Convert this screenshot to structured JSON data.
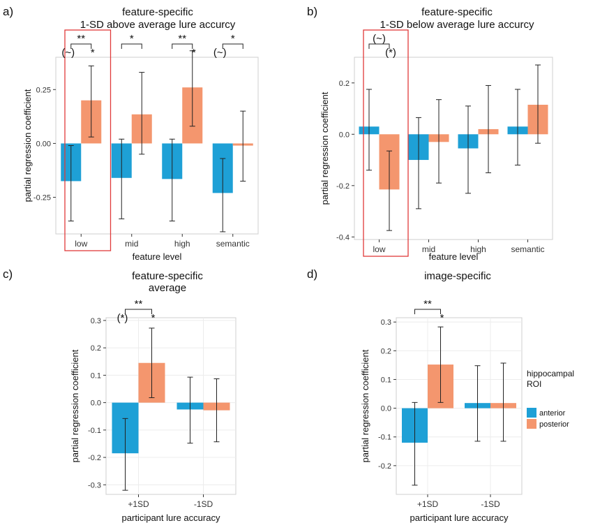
{
  "colors": {
    "anterior": "#1ea0d6",
    "posterior": "#f4966e",
    "highlight": "#e03a3a",
    "panel_border": "#cfcfcf"
  },
  "legend": {
    "title_line1": "hippocampal",
    "title_line2": "ROI",
    "items": [
      {
        "key": "anterior",
        "label": "anterior"
      },
      {
        "key": "posterior",
        "label": "posterior"
      }
    ]
  },
  "chart_data": [
    {
      "id": "a",
      "letter": "a)",
      "type": "bar",
      "title_lines": [
        "feature-specific",
        "1-SD above average lure accurcy"
      ],
      "xlabel": "feature level",
      "ylabel": "partial regression coefficient",
      "categories": [
        "low",
        "mid",
        "high",
        "semantic"
      ],
      "ylim": [
        -0.42,
        0.4
      ],
      "yticks": [
        -0.25,
        0,
        0.25
      ],
      "ytick_labels": [
        "-0.25",
        "0.00",
        "0.25"
      ],
      "highlight_category": 0,
      "grid": false,
      "series": [
        {
          "key": "anterior",
          "values": [
            -0.175,
            -0.16,
            -0.165,
            -0.23
          ],
          "lower": [
            -0.36,
            -0.35,
            -0.36,
            -0.41
          ],
          "upper": [
            -0.01,
            0.02,
            0.02,
            -0.07
          ]
        },
        {
          "key": "posterior",
          "values": [
            0.2,
            0.135,
            0.26,
            -0.01
          ],
          "lower": [
            0.03,
            -0.05,
            0.08,
            -0.175
          ],
          "upper": [
            0.36,
            0.33,
            0.43,
            0.15
          ]
        }
      ],
      "annotations": [
        {
          "category": 0,
          "bracket": "**",
          "anterior": "(~)",
          "posterior": "*"
        },
        {
          "category": 1,
          "bracket": "*",
          "anterior": "",
          "posterior": ""
        },
        {
          "category": 2,
          "bracket": "**",
          "anterior": "",
          "posterior": "*"
        },
        {
          "category": 3,
          "bracket": "*",
          "anterior": "(~)",
          "posterior": ""
        }
      ]
    },
    {
      "id": "b",
      "letter": "b)",
      "type": "bar",
      "title_lines": [
        "feature-specific",
        "1-SD below average lure accurcy"
      ],
      "xlabel": "feature level",
      "ylabel": "partial regression coefficient",
      "categories": [
        "low",
        "mid",
        "high",
        "semantic"
      ],
      "ylim": [
        -0.41,
        0.3
      ],
      "yticks": [
        -0.4,
        -0.2,
        0,
        0.2
      ],
      "ytick_labels": [
        "-0.4",
        "-0.2",
        "0.0",
        "0.2"
      ],
      "highlight_category": 0,
      "grid": false,
      "series": [
        {
          "key": "anterior",
          "values": [
            0.03,
            -0.1,
            -0.055,
            0.03
          ],
          "lower": [
            -0.14,
            -0.29,
            -0.23,
            -0.12
          ],
          "upper": [
            0.175,
            0.065,
            0.11,
            0.175
          ]
        },
        {
          "key": "posterior",
          "values": [
            -0.215,
            -0.03,
            0.02,
            0.115
          ],
          "lower": [
            -0.375,
            -0.19,
            -0.15,
            -0.035
          ],
          "upper": [
            -0.065,
            0.135,
            0.19,
            0.27
          ]
        }
      ],
      "annotations": [
        {
          "category": 0,
          "bracket": "(~)",
          "anterior": "",
          "posterior": "(*)"
        }
      ]
    },
    {
      "id": "c",
      "letter": "c)",
      "type": "bar",
      "title_lines": [
        "feature-specific",
        "average"
      ],
      "xlabel": "participant lure accuracy",
      "ylabel": "partial regression coefficient",
      "categories": [
        "+1SD",
        "-1SD"
      ],
      "ylim": [
        -0.335,
        0.31
      ],
      "yticks": [
        -0.3,
        -0.2,
        -0.1,
        0,
        0.1,
        0.2,
        0.3
      ],
      "ytick_labels": [
        "-0.3",
        "-0.2",
        "-0.1",
        "0.0",
        "0.1",
        "0.2",
        "0.3"
      ],
      "highlight_category": null,
      "grid": true,
      "series": [
        {
          "key": "anterior",
          "values": [
            -0.185,
            -0.025
          ],
          "lower": [
            -0.32,
            -0.148
          ],
          "upper": [
            -0.058,
            0.093
          ]
        },
        {
          "key": "posterior",
          "values": [
            0.145,
            -0.028
          ],
          "lower": [
            0.018,
            -0.143
          ],
          "upper": [
            0.272,
            0.087
          ]
        }
      ],
      "annotations": [
        {
          "category": 0,
          "bracket": "**",
          "anterior": "(*)",
          "posterior": "*"
        }
      ]
    },
    {
      "id": "d",
      "letter": "d)",
      "type": "bar",
      "title_lines": [
        "image-specific"
      ],
      "xlabel": "participant lure accuracy",
      "ylabel": "partial regression coefficient",
      "categories": [
        "+1SD",
        "-1SD"
      ],
      "ylim": [
        -0.3,
        0.315
      ],
      "yticks": [
        -0.2,
        -0.1,
        0,
        0.1,
        0.2,
        0.3
      ],
      "ytick_labels": [
        "-0.2",
        "-0.1",
        "0.0",
        "0.1",
        "0.2",
        "0.3"
      ],
      "highlight_category": null,
      "grid": true,
      "series": [
        {
          "key": "anterior",
          "values": [
            -0.12,
            0.018
          ],
          "lower": [
            -0.268,
            -0.115
          ],
          "upper": [
            0.02,
            0.148
          ]
        },
        {
          "key": "posterior",
          "values": [
            0.152,
            0.018
          ],
          "lower": [
            0.02,
            -0.115
          ],
          "upper": [
            0.283,
            0.157
          ]
        }
      ],
      "annotations": [
        {
          "category": 0,
          "bracket": "**",
          "anterior": "",
          "posterior": "*"
        }
      ]
    }
  ]
}
